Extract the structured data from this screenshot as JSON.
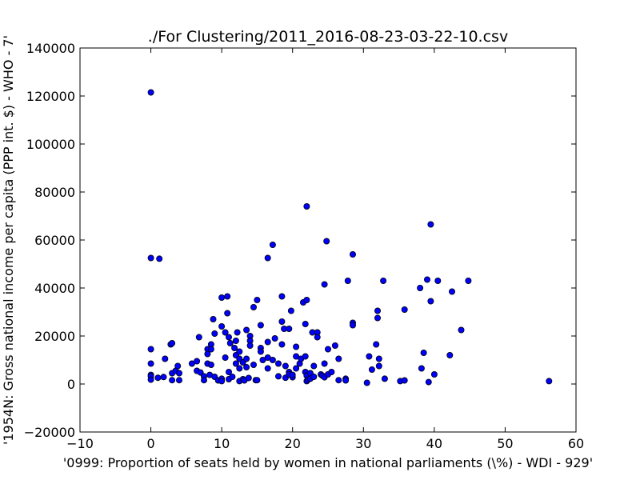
{
  "chart_data": {
    "type": "scatter",
    "title": "./For Clustering/2011_2016-08-23-03-22-10.csv",
    "xlabel": "'0999: Proportion of seats held by women in national parliaments  (\\%) - WDI - 929'",
    "ylabel": "'1954N: Gross national income per capita (PPP int. $) - WHO - 7'",
    "xlim": [
      -10,
      60
    ],
    "ylim": [
      -20000,
      140000
    ],
    "xticks": [
      "−10",
      "0",
      "10",
      "20",
      "30",
      "40",
      "50",
      "60"
    ],
    "yticks": [
      "−20000",
      "0",
      "20000",
      "40000",
      "60000",
      "80000",
      "100000",
      "120000",
      "140000"
    ],
    "grid": false,
    "marker_color": "#0000ff",
    "points": [
      [
        0,
        121500
      ],
      [
        0,
        52500
      ],
      [
        1.2,
        52200
      ],
      [
        0,
        14500
      ],
      [
        0,
        8500
      ],
      [
        0,
        3800
      ],
      [
        0,
        3200
      ],
      [
        0,
        1800
      ],
      [
        1,
        2600
      ],
      [
        1.8,
        2900
      ],
      [
        2,
        10500
      ],
      [
        2.8,
        16500
      ],
      [
        3,
        17000
      ],
      [
        3,
        4500
      ],
      [
        3,
        1600
      ],
      [
        3.5,
        5500
      ],
      [
        3.8,
        7500
      ],
      [
        4,
        4500
      ],
      [
        4,
        1600
      ],
      [
        5.8,
        8500
      ],
      [
        6.5,
        9500
      ],
      [
        6.5,
        5500
      ],
      [
        6.8,
        19500
      ],
      [
        7,
        4800
      ],
      [
        7.5,
        3200
      ],
      [
        7.5,
        1600
      ],
      [
        8,
        14500
      ],
      [
        8,
        12500
      ],
      [
        8,
        8500
      ],
      [
        8.3,
        3800
      ],
      [
        8.5,
        16500
      ],
      [
        8.5,
        14500
      ],
      [
        8.5,
        8000
      ],
      [
        8.8,
        27000
      ],
      [
        9,
        21000
      ],
      [
        9,
        3000
      ],
      [
        9.5,
        1500
      ],
      [
        10,
        2200
      ],
      [
        10,
        24000
      ],
      [
        10,
        36000
      ],
      [
        10,
        1200
      ],
      [
        10.5,
        21500
      ],
      [
        10.5,
        11000
      ],
      [
        10.8,
        29500
      ],
      [
        10.8,
        36500
      ],
      [
        11,
        19500
      ],
      [
        11,
        2000
      ],
      [
        11,
        5000
      ],
      [
        11.2,
        17000
      ],
      [
        11.5,
        3000
      ],
      [
        11.8,
        15000
      ],
      [
        12,
        18000
      ],
      [
        12,
        12000
      ],
      [
        12,
        8500
      ],
      [
        12.2,
        21500
      ],
      [
        12.5,
        13500
      ],
      [
        12.5,
        10500
      ],
      [
        12.5,
        6500
      ],
      [
        12.5,
        1200
      ],
      [
        13,
        9000
      ],
      [
        13,
        2000
      ],
      [
        13.2,
        1500
      ],
      [
        13.5,
        22500
      ],
      [
        13.5,
        10500
      ],
      [
        13.5,
        7000
      ],
      [
        13.8,
        2500
      ],
      [
        14,
        20000
      ],
      [
        14,
        18000
      ],
      [
        14,
        16000
      ],
      [
        14.5,
        32000
      ],
      [
        14.5,
        8000
      ],
      [
        14.8,
        1600
      ],
      [
        15,
        35000
      ],
      [
        15,
        1600
      ],
      [
        15.5,
        24500
      ],
      [
        15.5,
        15000
      ],
      [
        15.5,
        13500
      ],
      [
        15.8,
        10000
      ],
      [
        16.5,
        52500
      ],
      [
        16.5,
        17500
      ],
      [
        16.5,
        11000
      ],
      [
        16.5,
        6500
      ],
      [
        17.2,
        58000
      ],
      [
        17.2,
        10000
      ],
      [
        17.5,
        19000
      ],
      [
        18,
        8500
      ],
      [
        18,
        3200
      ],
      [
        18.5,
        36500
      ],
      [
        18.5,
        26000
      ],
      [
        18.5,
        16500
      ],
      [
        18.8,
        23000
      ],
      [
        19,
        7500
      ],
      [
        19,
        2600
      ],
      [
        19.5,
        23000
      ],
      [
        19.5,
        5000
      ],
      [
        19.5,
        4000
      ],
      [
        19.8,
        30500
      ],
      [
        20,
        2800
      ],
      [
        20,
        3800
      ],
      [
        20.5,
        15500
      ],
      [
        20.5,
        11500
      ],
      [
        20.5,
        6500
      ],
      [
        21,
        8500
      ],
      [
        21.2,
        10500
      ],
      [
        21.5,
        34000
      ],
      [
        21.8,
        25000
      ],
      [
        21.8,
        11500
      ],
      [
        21.8,
        5000
      ],
      [
        22,
        74000
      ],
      [
        22,
        35000
      ],
      [
        22,
        3500
      ],
      [
        22,
        1200
      ],
      [
        22.2,
        1800
      ],
      [
        22.5,
        4500
      ],
      [
        22.5,
        2200
      ],
      [
        22.8,
        21500
      ],
      [
        23,
        7500
      ],
      [
        23,
        3000
      ],
      [
        23.5,
        21500
      ],
      [
        23.5,
        19500
      ],
      [
        24,
        4000
      ],
      [
        24.2,
        3500
      ],
      [
        24.5,
        41500
      ],
      [
        24.5,
        8500
      ],
      [
        24.5,
        2800
      ],
      [
        24.8,
        59500
      ],
      [
        25,
        14500
      ],
      [
        25,
        4000
      ],
      [
        25.5,
        5000
      ],
      [
        26,
        16000
      ],
      [
        26.5,
        10500
      ],
      [
        26.5,
        1600
      ],
      [
        27.5,
        2200
      ],
      [
        27.5,
        1500
      ],
      [
        27.8,
        43000
      ],
      [
        28.5,
        54000
      ],
      [
        28.5,
        25500
      ],
      [
        28.5,
        24500
      ],
      [
        30.5,
        500
      ],
      [
        30.8,
        11500
      ],
      [
        31.2,
        6000
      ],
      [
        31.8,
        16500
      ],
      [
        32,
        30500
      ],
      [
        32,
        27500
      ],
      [
        32.2,
        10500
      ],
      [
        32.2,
        7500
      ],
      [
        32.8,
        43000
      ],
      [
        33,
        2200
      ],
      [
        35.2,
        1200
      ],
      [
        35.8,
        31000
      ],
      [
        35.8,
        1500
      ],
      [
        38,
        40000
      ],
      [
        38.2,
        6500
      ],
      [
        38.5,
        13000
      ],
      [
        39,
        43500
      ],
      [
        39.2,
        800
      ],
      [
        39.5,
        66500
      ],
      [
        39.5,
        34500
      ],
      [
        40,
        4000
      ],
      [
        40.5,
        43000
      ],
      [
        42.2,
        12000
      ],
      [
        42.5,
        38500
      ],
      [
        43.8,
        22500
      ],
      [
        44.8,
        43000
      ],
      [
        56.2,
        1200
      ]
    ]
  }
}
